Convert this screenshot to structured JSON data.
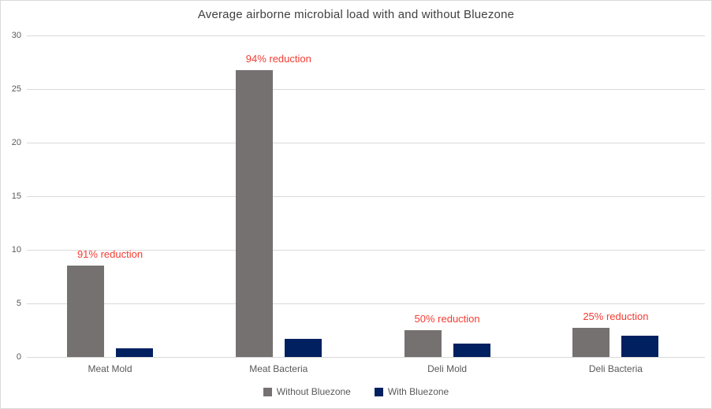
{
  "page": {
    "background": "#ffffff",
    "border_color": "#d9d9d9"
  },
  "chart_data": {
    "type": "bar",
    "title": "Average airborne microbial load with and without Bluezone",
    "title_color": "#404040",
    "categories": [
      "Meat Mold",
      "Meat Bacteria",
      "Deli Mold",
      "Deli Bacteria"
    ],
    "series": [
      {
        "name": "Without Bluezone",
        "color": "#767171",
        "values": [
          8.5,
          26.8,
          2.5,
          2.7
        ]
      },
      {
        "name": "With Bluezone",
        "color": "#002060",
        "values": [
          0.8,
          1.7,
          1.25,
          2.0
        ]
      }
    ],
    "annotations": [
      "91% reduction",
      "94% reduction",
      "50% reduction",
      "25% reduction"
    ],
    "annotation_color": "#f43c32",
    "yticks": [
      0,
      5,
      10,
      15,
      20,
      25,
      30
    ],
    "ylim": [
      0,
      30
    ],
    "xlabel": "",
    "ylabel": "",
    "grid": true,
    "gridline_color": "#d9d9d9",
    "axis_label_color": "#595959",
    "legend_position": "bottom"
  }
}
